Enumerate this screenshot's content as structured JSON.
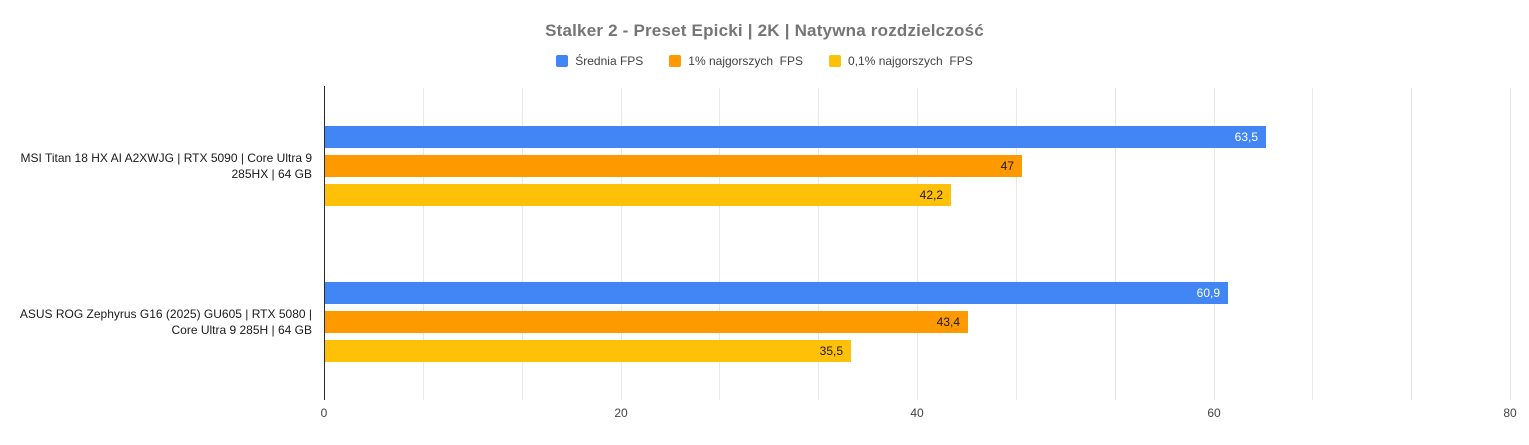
{
  "title": "Stalker 2 - Preset Epicki | 2K | Natywna rozdzielczość",
  "legend": [
    {
      "label": "Średnia FPS",
      "color": "#4285F4"
    },
    {
      "label": "1% najgorszych  FPS",
      "color": "#FF9900"
    },
    {
      "label": "0,1% najgorszych  FPS",
      "color": "#FFC107"
    }
  ],
  "chart_data": {
    "type": "bar",
    "orientation": "horizontal",
    "title": "Stalker 2 - Preset Epicki | 2K | Natywna rozdzielczość",
    "categories": [
      "MSI Titan 18 HX AI A2XWJG | RTX 5090 | Core Ultra 9 285HX | 64 GB",
      "ASUS ROG Zephyrus G16 (2025) GU605 | RTX 5080 | Core Ultra 9 285H | 64 GB"
    ],
    "series": [
      {
        "name": "Średnia FPS",
        "color": "#4285F4",
        "values": [
          63.5,
          60.9
        ],
        "value_labels": [
          "63,5",
          "60,9"
        ],
        "label_color": "#ffffff"
      },
      {
        "name": "1% najgorszych FPS",
        "color": "#FF9900",
        "values": [
          47,
          43.4
        ],
        "value_labels": [
          "47",
          "43,4"
        ],
        "label_color": "#1a1a1a"
      },
      {
        "name": "0,1% najgorszych FPS",
        "color": "#FFC107",
        "values": [
          42.2,
          35.5
        ],
        "value_labels": [
          "42,2",
          "35,5"
        ],
        "label_color": "#1a1a1a"
      }
    ],
    "xlabel": "",
    "ylabel": "",
    "xlim": [
      0,
      80
    ],
    "x_ticks": [
      0,
      20,
      40,
      60,
      80
    ],
    "x_tick_labels": [
      "0",
      "20",
      "40",
      "60",
      "80"
    ],
    "minor_gridlines_between_majors": 2,
    "grid": true,
    "legend_position": "top"
  }
}
